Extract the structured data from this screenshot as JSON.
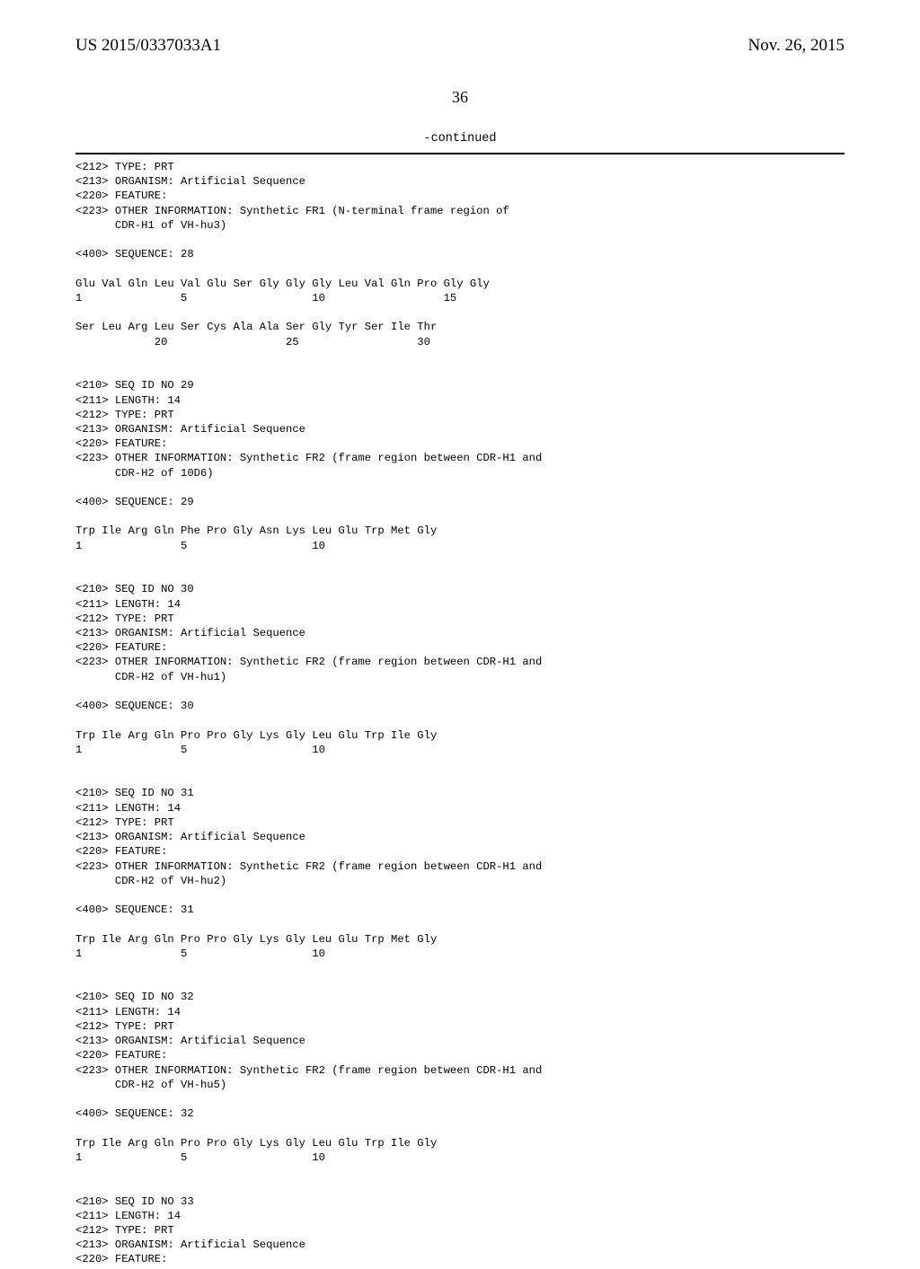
{
  "header": {
    "pub_num": "US 2015/0337033A1",
    "pub_date": "Nov. 26, 2015"
  },
  "page_num": "36",
  "continued_label": "-continued",
  "listing": "<212> TYPE: PRT\n<213> ORGANISM: Artificial Sequence\n<220> FEATURE:\n<223> OTHER INFORMATION: Synthetic FR1 (N-terminal frame region of\n      CDR-H1 of VH-hu3)\n\n<400> SEQUENCE: 28\n\nGlu Val Gln Leu Val Glu Ser Gly Gly Gly Leu Val Gln Pro Gly Gly\n1               5                   10                  15\n\nSer Leu Arg Leu Ser Cys Ala Ala Ser Gly Tyr Ser Ile Thr\n            20                  25                  30\n\n\n<210> SEQ ID NO 29\n<211> LENGTH: 14\n<212> TYPE: PRT\n<213> ORGANISM: Artificial Sequence\n<220> FEATURE:\n<223> OTHER INFORMATION: Synthetic FR2 (frame region between CDR-H1 and\n      CDR-H2 of 10D6)\n\n<400> SEQUENCE: 29\n\nTrp Ile Arg Gln Phe Pro Gly Asn Lys Leu Glu Trp Met Gly\n1               5                   10\n\n\n<210> SEQ ID NO 30\n<211> LENGTH: 14\n<212> TYPE: PRT\n<213> ORGANISM: Artificial Sequence\n<220> FEATURE:\n<223> OTHER INFORMATION: Synthetic FR2 (frame region between CDR-H1 and\n      CDR-H2 of VH-hu1)\n\n<400> SEQUENCE: 30\n\nTrp Ile Arg Gln Pro Pro Gly Lys Gly Leu Glu Trp Ile Gly\n1               5                   10\n\n\n<210> SEQ ID NO 31\n<211> LENGTH: 14\n<212> TYPE: PRT\n<213> ORGANISM: Artificial Sequence\n<220> FEATURE:\n<223> OTHER INFORMATION: Synthetic FR2 (frame region between CDR-H1 and\n      CDR-H2 of VH-hu2)\n\n<400> SEQUENCE: 31\n\nTrp Ile Arg Gln Pro Pro Gly Lys Gly Leu Glu Trp Met Gly\n1               5                   10\n\n\n<210> SEQ ID NO 32\n<211> LENGTH: 14\n<212> TYPE: PRT\n<213> ORGANISM: Artificial Sequence\n<220> FEATURE:\n<223> OTHER INFORMATION: Synthetic FR2 (frame region between CDR-H1 and\n      CDR-H2 of VH-hu5)\n\n<400> SEQUENCE: 32\n\nTrp Ile Arg Gln Pro Pro Gly Lys Gly Leu Glu Trp Ile Gly\n1               5                   10\n\n\n<210> SEQ ID NO 33\n<211> LENGTH: 14\n<212> TYPE: PRT\n<213> ORGANISM: Artificial Sequence\n<220> FEATURE:"
}
